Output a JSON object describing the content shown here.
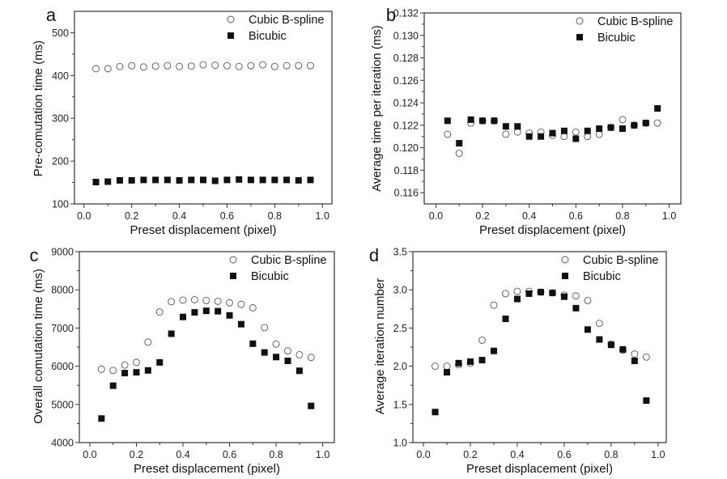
{
  "chart_data": [
    {
      "type": "scatter",
      "panel_label": "a",
      "xlabel": "Preset displacement (pixel)",
      "ylabel": "Pre-comutation time (ms)",
      "xlim": [
        -0.04,
        1.04
      ],
      "ylim": [
        100,
        550
      ],
      "xticks": [
        "0.0",
        "0.2",
        "0.4",
        "0.6",
        "0.8",
        "1.0"
      ],
      "yticks": [
        "100",
        "200",
        "300",
        "400",
        "500"
      ],
      "grid": false,
      "legend_position": "top-right",
      "x": [
        0.05,
        0.1,
        0.15,
        0.2,
        0.25,
        0.3,
        0.35,
        0.4,
        0.45,
        0.5,
        0.55,
        0.6,
        0.65,
        0.7,
        0.75,
        0.8,
        0.85,
        0.9,
        0.95
      ],
      "series": [
        {
          "name": "Cubic B-spline",
          "marker": "open-circle",
          "values": [
            416,
            416,
            421,
            423,
            420,
            422,
            423,
            421,
            422,
            425,
            424,
            423,
            421,
            423,
            425,
            421,
            423,
            423,
            423
          ]
        },
        {
          "name": "Bicubic",
          "marker": "filled-square",
          "values": [
            151,
            152,
            155,
            155,
            156,
            156,
            156,
            155,
            156,
            156,
            154,
            156,
            157,
            156,
            156,
            156,
            156,
            155,
            156
          ]
        }
      ]
    },
    {
      "type": "scatter",
      "panel_label": "b",
      "xlabel": "Preset displacement (pixel)",
      "ylabel": "Average time per iteration (ms)",
      "xlim": [
        -0.05,
        1.05
      ],
      "ylim": [
        0.115,
        0.132
      ],
      "xticks": [
        "0.0",
        "0.2",
        "0.4",
        "0.6",
        "0.8",
        "1.0"
      ],
      "yticks": [
        "0.116",
        "0.118",
        "0.120",
        "0.122",
        "0.124",
        "0.126",
        "0.128",
        "0.130",
        "0.132"
      ],
      "grid": false,
      "legend_position": "top-right",
      "x": [
        0.05,
        0.1,
        0.15,
        0.2,
        0.25,
        0.3,
        0.35,
        0.4,
        0.45,
        0.5,
        0.55,
        0.6,
        0.65,
        0.7,
        0.75,
        0.8,
        0.85,
        0.9,
        0.95
      ],
      "series": [
        {
          "name": "Cubic B-spline",
          "marker": "open-circle",
          "values": [
            0.1212,
            0.1195,
            0.1222,
            0.1224,
            0.1224,
            0.1212,
            0.1214,
            0.1213,
            0.1214,
            0.1211,
            0.121,
            0.1214,
            0.121,
            0.1212,
            0.1218,
            0.1225,
            0.122,
            0.1222,
            0.1222
          ]
        },
        {
          "name": "Bicubic",
          "marker": "filled-square",
          "values": [
            0.1224,
            0.1204,
            0.1225,
            0.1224,
            0.1224,
            0.1219,
            0.1219,
            0.121,
            0.121,
            0.1213,
            0.1215,
            0.1208,
            0.1215,
            0.1217,
            0.1218,
            0.1217,
            0.122,
            0.1222,
            0.1235
          ]
        }
      ]
    },
    {
      "type": "scatter",
      "panel_label": "c",
      "xlabel": "Preset displacement (pixel)",
      "ylabel": "Overall comutation time (ms)",
      "xlim": [
        -0.045,
        1.05
      ],
      "ylim": [
        4000,
        9000
      ],
      "xticks": [
        "0.0",
        "0.2",
        "0.4",
        "0.6",
        "0.8",
        "1.0"
      ],
      "yticks": [
        "4000",
        "5000",
        "6000",
        "7000",
        "8000",
        "9000"
      ],
      "grid": false,
      "legend_position": "top-right",
      "x": [
        0.05,
        0.1,
        0.15,
        0.2,
        0.25,
        0.3,
        0.35,
        0.4,
        0.45,
        0.5,
        0.55,
        0.6,
        0.65,
        0.7,
        0.75,
        0.8,
        0.85,
        0.9,
        0.95
      ],
      "series": [
        {
          "name": "Cubic B-spline",
          "marker": "open-circle",
          "values": [
            5920,
            5890,
            6030,
            6100,
            6630,
            7420,
            7690,
            7730,
            7740,
            7720,
            7700,
            7660,
            7620,
            7530,
            7010,
            6580,
            6400,
            6300,
            6230
          ]
        },
        {
          "name": "Bicubic",
          "marker": "filled-square",
          "values": [
            4630,
            5490,
            5820,
            5840,
            5890,
            6100,
            6850,
            7290,
            7410,
            7450,
            7440,
            7330,
            7100,
            6590,
            6360,
            6240,
            6140,
            5880,
            4960
          ]
        }
      ]
    },
    {
      "type": "scatter",
      "panel_label": "d",
      "xlabel": "Preset displacement (pixel)",
      "ylabel": "Average iteration number",
      "xlim": [
        -0.045,
        1.035
      ],
      "ylim": [
        1.0,
        3.5
      ],
      "xticks": [
        "0.0",
        "0.2",
        "0.4",
        "0.6",
        "0.8",
        "1.0"
      ],
      "yticks": [
        "1.0",
        "1.5",
        "2.0",
        "2.5",
        "3.0",
        "3.5"
      ],
      "grid": false,
      "legend_position": "top-right",
      "x": [
        0.05,
        0.1,
        0.15,
        0.2,
        0.25,
        0.3,
        0.35,
        0.4,
        0.45,
        0.5,
        0.55,
        0.6,
        0.65,
        0.7,
        0.75,
        0.8,
        0.85,
        0.9,
        0.95
      ],
      "series": [
        {
          "name": "Cubic B-spline",
          "marker": "open-circle",
          "values": [
            2.0,
            2.0,
            2.02,
            2.04,
            2.34,
            2.8,
            2.95,
            2.98,
            2.98,
            2.97,
            2.96,
            2.93,
            2.92,
            2.86,
            2.56,
            2.29,
            2.21,
            2.16,
            2.12
          ]
        },
        {
          "name": "Bicubic",
          "marker": "filled-square",
          "values": [
            1.4,
            1.92,
            2.04,
            2.06,
            2.08,
            2.2,
            2.62,
            2.88,
            2.95,
            2.97,
            2.96,
            2.91,
            2.76,
            2.48,
            2.35,
            2.28,
            2.22,
            2.07,
            1.55
          ]
        }
      ]
    }
  ]
}
